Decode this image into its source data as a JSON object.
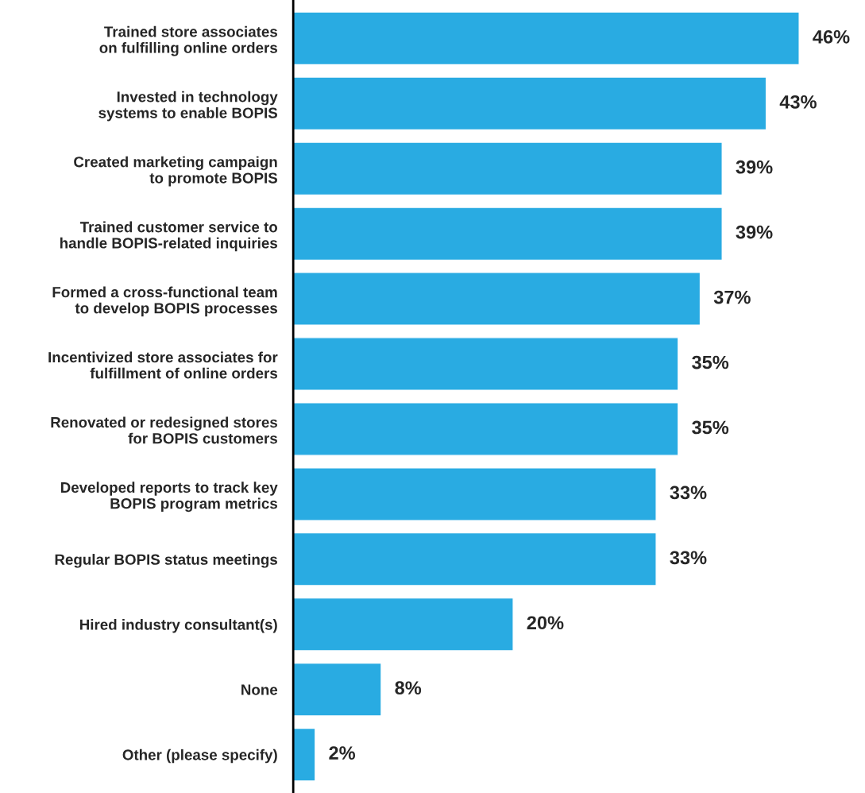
{
  "chart_data": {
    "type": "bar",
    "orientation": "horizontal",
    "categories": [
      "Trained store associates\non fulfilling online orders",
      "Invested in technology\nsystems to enable BOPIS",
      "Created marketing campaign\nto promote BOPIS",
      "Trained customer service to\nhandle BOPIS-related inquiries",
      "Formed a cross-functional team\nto develop BOPIS processes",
      "Incentivized store associates for\nfulfillment of online orders",
      "Renovated or redesigned stores\nfor BOPIS customers",
      "Developed reports to track key\nBOPIS program metrics",
      "Regular BOPIS status meetings",
      "Hired industry consultant(s)",
      "None",
      "Other (please specify)"
    ],
    "values": [
      46,
      43,
      39,
      39,
      37,
      35,
      35,
      33,
      33,
      20,
      8,
      2
    ],
    "value_labels": [
      "46%",
      "43%",
      "39%",
      "39%",
      "37%",
      "35%",
      "35%",
      "33%",
      "33%",
      "20%",
      "8%",
      "2%"
    ],
    "color": "#29abe2"
  }
}
